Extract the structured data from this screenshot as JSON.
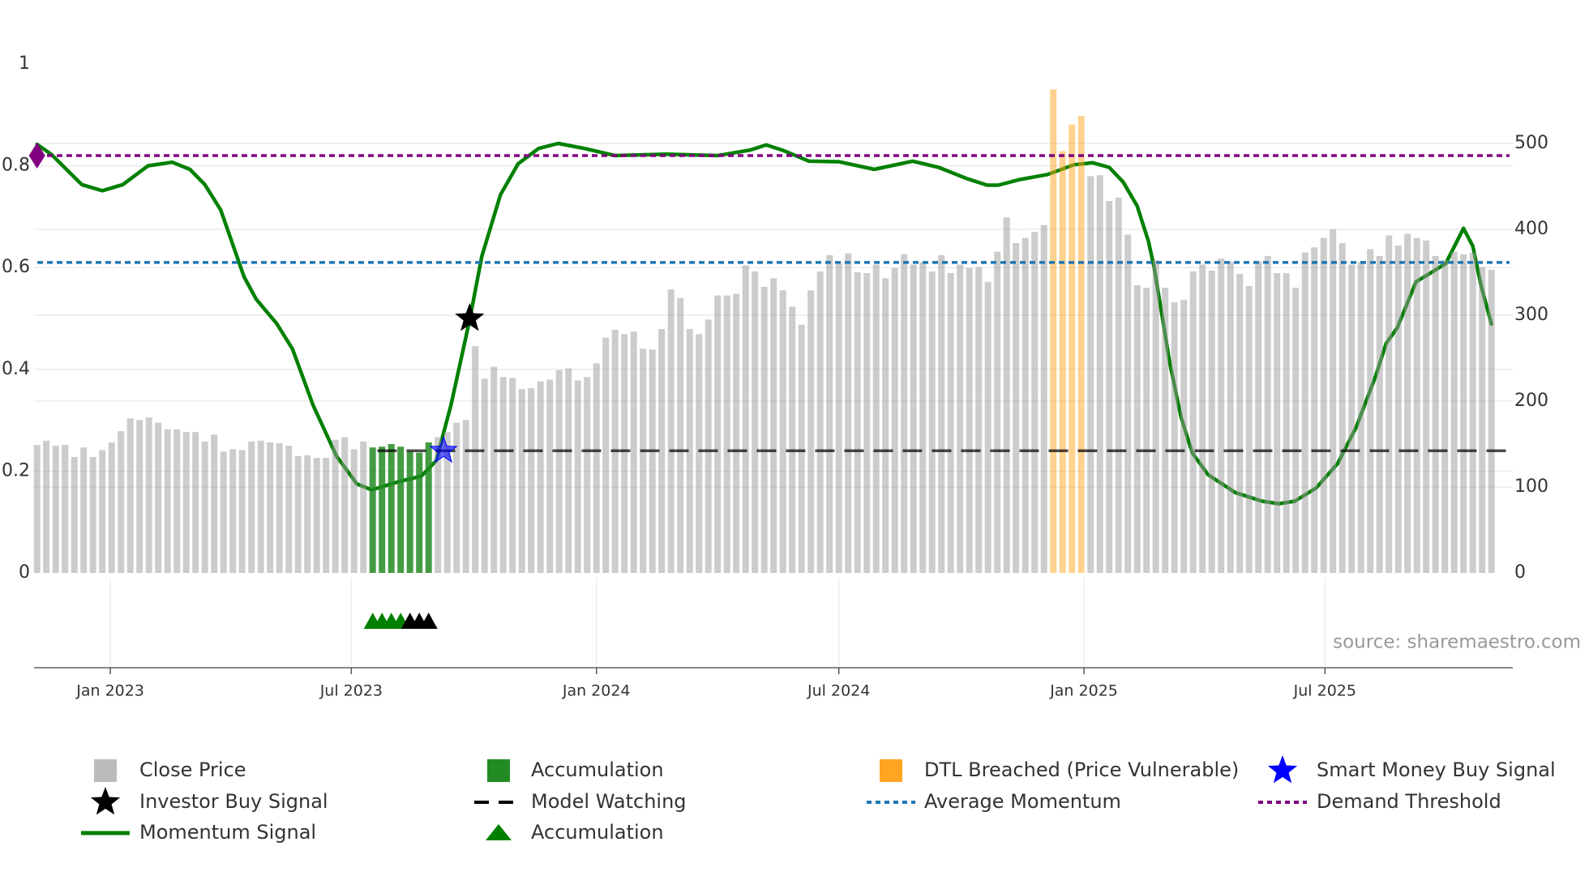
{
  "chart_data": {
    "type": "bar",
    "title": "",
    "source_note": "source: sharemaestro.com",
    "left_axis": {
      "range": [
        0,
        1
      ],
      "ticks": [
        0,
        0.2,
        0.4,
        0.6,
        0.8,
        1
      ],
      "tick_labels": [
        "0",
        "0.2",
        "0.4",
        "0.6",
        "0.8",
        "1"
      ]
    },
    "right_axis": {
      "range": [
        0,
        600
      ],
      "ticks": [
        0,
        100,
        200,
        300,
        400,
        500
      ],
      "tick_labels": [
        "0",
        "100",
        "200",
        "300",
        "400",
        "500"
      ]
    },
    "x_axis": {
      "unit": "week index",
      "ticks": [
        {
          "label": "Jan 2023",
          "week": 7.86
        },
        {
          "label": "Jul 2023",
          "week": 33.71
        },
        {
          "label": "Jan 2024",
          "week": 60
        },
        {
          "label": "Jul 2024",
          "week": 86
        },
        {
          "label": "Jan 2025",
          "week": 112.29
        },
        {
          "label": "Jul 2025",
          "week": 138.14
        }
      ]
    },
    "grid": true,
    "legend_position": "bottom",
    "close_price": [
      149,
      154,
      148,
      149,
      135,
      146,
      135,
      143,
      152,
      165,
      180,
      178,
      181,
      175,
      167,
      167,
      164,
      164,
      153,
      161,
      141,
      144,
      143,
      153,
      154,
      152,
      151,
      148,
      136,
      137,
      134,
      134,
      155,
      158,
      144,
      153,
      146,
      147,
      150,
      147,
      141,
      140,
      152,
      158,
      164,
      175,
      178,
      264,
      226,
      240,
      228,
      227,
      214,
      215,
      223,
      225,
      236,
      238,
      224,
      228,
      244,
      274,
      283,
      278,
      281,
      261,
      260,
      284,
      330,
      320,
      284,
      278,
      295,
      323,
      323,
      325,
      358,
      351,
      333,
      343,
      329,
      310,
      289,
      329,
      351,
      370,
      361,
      372,
      350,
      349,
      359,
      343,
      355,
      371,
      359,
      362,
      351,
      370,
      349,
      359,
      355,
      356,
      339,
      374,
      414,
      384,
      390,
      397,
      405,
      563,
      491,
      522,
      532,
      462,
      463,
      433,
      437,
      394,
      335,
      332,
      364,
      332,
      315,
      318,
      351,
      359,
      352,
      366,
      362,
      348,
      334,
      363,
      369,
      349,
      349,
      332,
      373,
      379,
      390,
      400,
      384,
      359,
      362,
      377,
      369,
      393,
      381,
      395,
      390,
      387,
      369,
      364,
      374,
      371,
      373,
      356,
      353
    ],
    "accumulation_weeks": [
      36,
      42
    ],
    "dtl_breached_weeks": [
      109,
      112
    ],
    "momentum_signal": [
      [
        0,
        0.842
      ],
      [
        1.5,
        0.823
      ],
      [
        4.8,
        0.763
      ],
      [
        7.0,
        0.751
      ],
      [
        9.2,
        0.763
      ],
      [
        11.9,
        0.8
      ],
      [
        14.5,
        0.807
      ],
      [
        16.4,
        0.793
      ],
      [
        18.0,
        0.763
      ],
      [
        19.7,
        0.713
      ],
      [
        22.2,
        0.582
      ],
      [
        23.5,
        0.538
      ],
      [
        25.7,
        0.49
      ],
      [
        27.4,
        0.44
      ],
      [
        29.6,
        0.33
      ],
      [
        32.1,
        0.23
      ],
      [
        34.3,
        0.175
      ],
      [
        35.9,
        0.163
      ],
      [
        38.9,
        0.18
      ],
      [
        41.2,
        0.19
      ],
      [
        42.8,
        0.22
      ],
      [
        44.4,
        0.33
      ],
      [
        46.4,
        0.497
      ],
      [
        47.7,
        0.622
      ],
      [
        49.7,
        0.743
      ],
      [
        51.6,
        0.804
      ],
      [
        53.8,
        0.834
      ],
      [
        55.9,
        0.844
      ],
      [
        58.7,
        0.834
      ],
      [
        62.0,
        0.82
      ],
      [
        67.5,
        0.823
      ],
      [
        73.0,
        0.82
      ],
      [
        76.5,
        0.831
      ],
      [
        78.2,
        0.841
      ],
      [
        79.9,
        0.831
      ],
      [
        82.8,
        0.809
      ],
      [
        86.0,
        0.808
      ],
      [
        89.8,
        0.793
      ],
      [
        93.9,
        0.809
      ],
      [
        96.7,
        0.797
      ],
      [
        99.7,
        0.775
      ],
      [
        101.9,
        0.762
      ],
      [
        103.1,
        0.762
      ],
      [
        105.4,
        0.773
      ],
      [
        108.4,
        0.783
      ],
      [
        111.2,
        0.802
      ],
      [
        113.2,
        0.806
      ],
      [
        115.0,
        0.797
      ],
      [
        116.5,
        0.768
      ],
      [
        118.0,
        0.721
      ],
      [
        119.2,
        0.652
      ],
      [
        119.8,
        0.602
      ],
      [
        120.6,
        0.513
      ],
      [
        121.5,
        0.412
      ],
      [
        122.7,
        0.306
      ],
      [
        123.9,
        0.236
      ],
      [
        125.6,
        0.193
      ],
      [
        128.5,
        0.158
      ],
      [
        131.4,
        0.141
      ],
      [
        133.2,
        0.136
      ],
      [
        134.9,
        0.141
      ],
      [
        137.2,
        0.167
      ],
      [
        139.5,
        0.215
      ],
      [
        141.5,
        0.287
      ],
      [
        143.6,
        0.388
      ],
      [
        144.7,
        0.451
      ],
      [
        145.9,
        0.482
      ],
      [
        147.9,
        0.572
      ],
      [
        149.7,
        0.592
      ],
      [
        151.1,
        0.608
      ],
      [
        153.0,
        0.677
      ],
      [
        154.0,
        0.642
      ],
      [
        154.9,
        0.563
      ],
      [
        156.0,
        0.489
      ]
    ],
    "average_momentum": 0.61,
    "demand_threshold": 0.82,
    "model_watching": {
      "value": 0.24,
      "from_week": 36.5
    },
    "investor_buy_signals": [
      {
        "week": 46.4,
        "value": 0.5
      }
    ],
    "smart_money_buy_signals": [
      {
        "week": 43.6,
        "value": 0.24
      }
    ],
    "demand_threshold_marker": {
      "week": 0,
      "value": 0.82
    },
    "accumulation_triangles_green": [
      36,
      37,
      38,
      39
    ],
    "accumulation_triangles_black": [
      40,
      41,
      42
    ],
    "colors": {
      "close": "#999999",
      "close_legend": "#bbbbbb",
      "accumulation": "#228b22",
      "dtl": "#ffa520",
      "momentum": "#008000",
      "average_momentum": "#1f77b4",
      "demand_threshold": "#800080",
      "smart_money": "#0000ff",
      "investor": "#000000",
      "model_watching": "#000000"
    },
    "legend": [
      {
        "label": "Close Price",
        "symbol": "square",
        "color": "#bbbbbb"
      },
      {
        "label": "Accumulation",
        "symbol": "square",
        "color": "#228b22"
      },
      {
        "label": "DTL Breached (Price Vulnerable)",
        "symbol": "square",
        "color": "#ffa520"
      },
      {
        "label": "Smart Money Buy Signal",
        "symbol": "star",
        "color": "#0000ff"
      },
      {
        "label": "Investor Buy Signal",
        "symbol": "star",
        "color": "#000000"
      },
      {
        "label": "Model Watching",
        "symbol": "dash",
        "color": "#000000"
      },
      {
        "label": "Average Momentum",
        "symbol": "dot",
        "color": "#1f77b4"
      },
      {
        "label": "Demand Threshold",
        "symbol": "dot",
        "color": "#800080"
      },
      {
        "label": "Momentum Signal",
        "symbol": "line",
        "color": "#008000"
      },
      {
        "label": "Accumulation",
        "symbol": "triangle",
        "color": "#008000"
      }
    ]
  }
}
